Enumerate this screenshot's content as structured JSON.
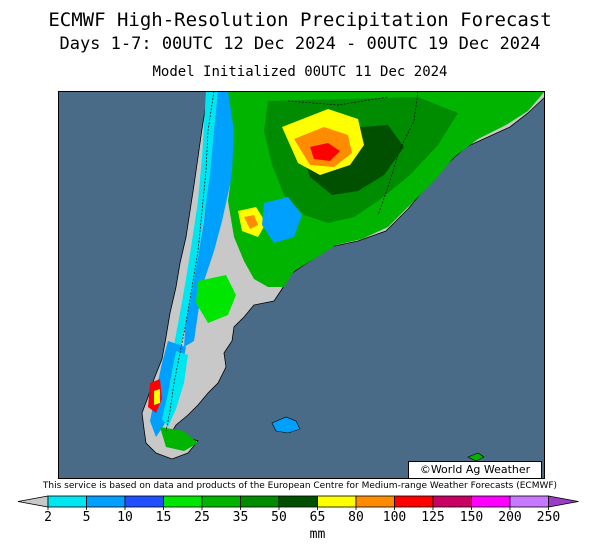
{
  "header": {
    "title": "ECMWF High-Resolution Precipitation Forecast",
    "period": "Days 1-7: 00UTC 12 Dec 2024 - 00UTC 19 Dec 2024",
    "initialized": "Model Initialized 00UTC 11 Dec 2024"
  },
  "watermark": "©World Ag Weather",
  "credit": "This service is based on data and products of the European Centre for Medium-range Weather Forecasts (ECMWF)",
  "legend": {
    "unit": "mm",
    "ticks": [
      "2",
      "5",
      "10",
      "15",
      "25",
      "35",
      "50",
      "65",
      "80",
      "100",
      "125",
      "150",
      "200",
      "250"
    ],
    "below_color": "#c8c8c8",
    "above_color": "#9a3cc8",
    "bins": [
      {
        "from": "2",
        "to": "5",
        "color": "#00e6f0"
      },
      {
        "from": "5",
        "to": "10",
        "color": "#00a0ff"
      },
      {
        "from": "10",
        "to": "15",
        "color": "#1e50ff"
      },
      {
        "from": "15",
        "to": "25",
        "color": "#00e600"
      },
      {
        "from": "25",
        "to": "35",
        "color": "#00b400"
      },
      {
        "from": "35",
        "to": "50",
        "color": "#008c00"
      },
      {
        "from": "50",
        "to": "65",
        "color": "#005000"
      },
      {
        "from": "65",
        "to": "80",
        "color": "#ffff00"
      },
      {
        "from": "80",
        "to": "100",
        "color": "#ff8c00"
      },
      {
        "from": "100",
        "to": "125",
        "color": "#ff0000"
      },
      {
        "from": "125",
        "to": "150",
        "color": "#c80064"
      },
      {
        "from": "150",
        "to": "200",
        "color": "#ff00ff"
      },
      {
        "from": "200",
        "to": "250",
        "color": "#c878ff"
      }
    ]
  },
  "map_colors": {
    "ocean": "#4a6b87",
    "dry_land": "#c8c8c8"
  }
}
